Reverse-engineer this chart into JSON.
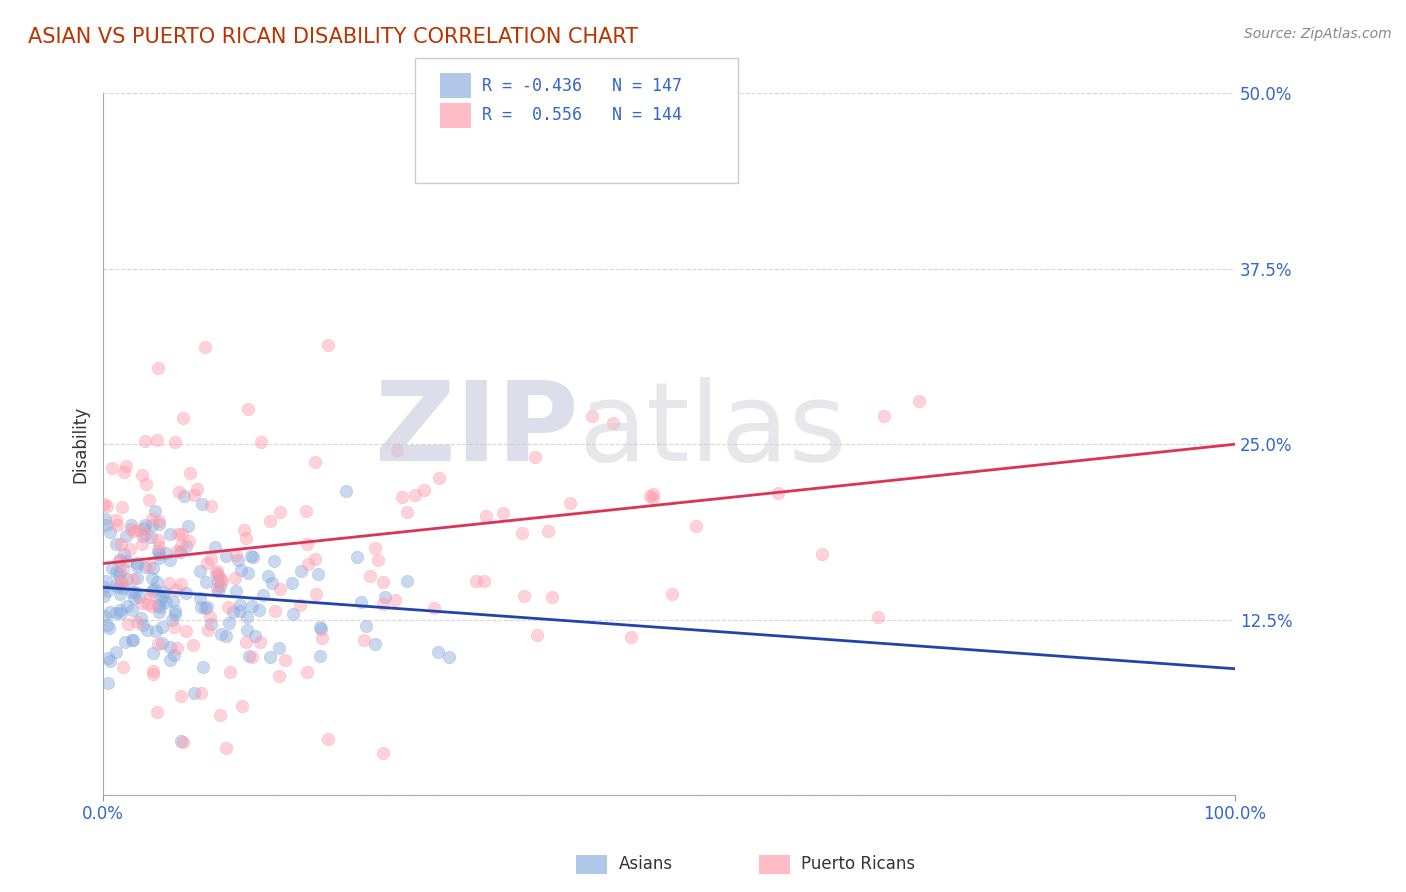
{
  "title": "ASIAN VS PUERTO RICAN DISABILITY CORRELATION CHART",
  "source": "Source: ZipAtlas.com",
  "ylabel": "Disability",
  "xlim": [
    0,
    1.0
  ],
  "ylim": [
    0,
    0.5
  ],
  "yticks": [
    0.0,
    0.125,
    0.25,
    0.375,
    0.5
  ],
  "ytick_labels": [
    "",
    "12.5%",
    "25.0%",
    "37.5%",
    "50.0%"
  ],
  "xticks": [
    0.0,
    1.0
  ],
  "xtick_labels": [
    "0.0%",
    "100.0%"
  ],
  "legend_r1": "R = -0.436",
  "legend_n1": "N = 147",
  "legend_r2": "R =  0.556",
  "legend_n2": "N = 144",
  "legend_label1": "Asians",
  "legend_label2": "Puerto Ricans",
  "blue_color": "#88AADD",
  "pink_color": "#FF99AA",
  "blue_line_color": "#2244AA",
  "pink_line_color": "#DD3355",
  "title_color": "#BB3300",
  "label_color": "#3366CC",
  "watermark_zip_color": "#C8C8DC",
  "watermark_atlas_color": "#D0D0D8",
  "asian_intercept": 0.148,
  "asian_slope": -0.058,
  "pr_intercept": 0.165,
  "pr_slope": 0.085,
  "background_color": "#FFFFFF",
  "grid_color": "#CCCCCC",
  "asian_n": 147,
  "pr_n": 144
}
